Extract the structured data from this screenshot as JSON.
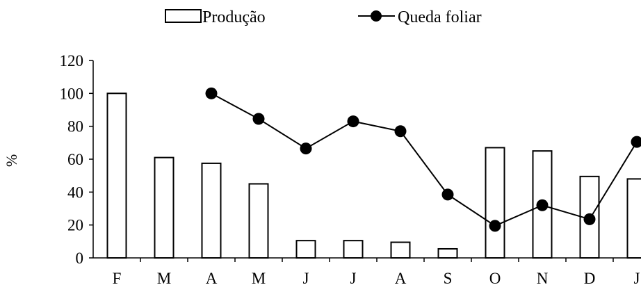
{
  "chart_data": {
    "type": "bar",
    "categories": [
      "F",
      "M",
      "A",
      "M",
      "J",
      "J",
      "A",
      "S",
      "O",
      "N",
      "D",
      "J"
    ],
    "series": [
      {
        "name": "Produção",
        "type": "bar",
        "values": [
          100,
          61,
          57.5,
          45,
          10.5,
          10.5,
          9.5,
          5.5,
          67,
          65,
          49.5,
          48
        ]
      },
      {
        "name": "Queda foliar",
        "type": "line",
        "values": [
          null,
          null,
          100,
          84.5,
          66.5,
          83,
          77,
          38.5,
          19.5,
          32,
          23.5,
          70.5
        ]
      }
    ],
    "ylabel": "%",
    "ylim": [
      0,
      120
    ],
    "yticks": [
      0,
      20,
      40,
      60,
      80,
      100,
      120
    ],
    "legend_position": "top",
    "grid": false
  }
}
